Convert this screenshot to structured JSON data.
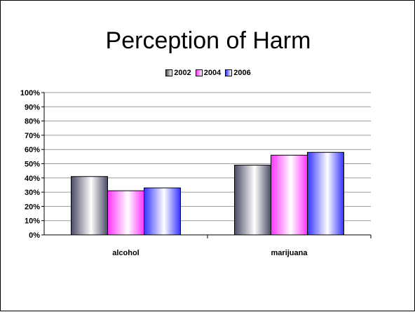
{
  "chart_data": {
    "type": "bar",
    "title": "Perception of Harm",
    "categories": [
      "alcohol",
      "marijuana"
    ],
    "series": [
      {
        "name": "2002",
        "values": [
          41,
          49
        ]
      },
      {
        "name": "2004",
        "values": [
          31,
          56
        ]
      },
      {
        "name": "2006",
        "values": [
          33,
          58
        ]
      }
    ],
    "yticks": [
      "0%",
      "10%",
      "20%",
      "30%",
      "40%",
      "50%",
      "60%",
      "70%",
      "80%",
      "90%",
      "100%"
    ],
    "ylim": [
      0,
      100
    ],
    "grid": true,
    "legend_position": "top",
    "colors": {
      "2002": "#4a4a66",
      "2004": "#ff33ff",
      "2006": "#3333ff"
    }
  }
}
